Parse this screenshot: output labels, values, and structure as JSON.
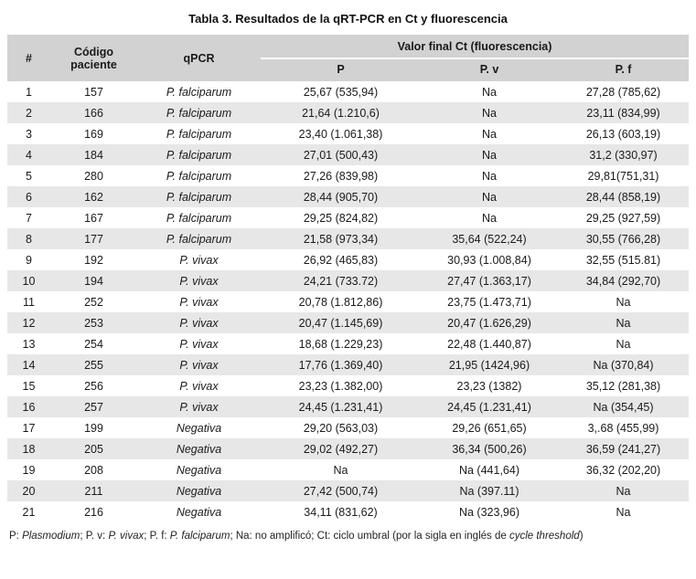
{
  "title": "Tabla 3. Resultados de la qRT-PCR en Ct y fluorescencia",
  "table": {
    "headers": {
      "num": "#",
      "codigo": "Código paciente",
      "qpcr": "qPCR",
      "group": "Valor final Ct (fluorescencia)",
      "sub_p": "P",
      "sub_pv": "P. v",
      "sub_pf": "P. f"
    },
    "rows": [
      [
        "1",
        "157",
        "P. falciparum",
        "25,67 (535,94)",
        "Na",
        "27,28 (785,62)"
      ],
      [
        "2",
        "166",
        "P. falciparum",
        "21,64 (1.210,6)",
        "Na",
        "23,11 (834,99)"
      ],
      [
        "3",
        "169",
        "P. falciparum",
        "23,40 (1.061,38)",
        "Na",
        "26,13 (603,19)"
      ],
      [
        "4",
        "184",
        "P. falciparum",
        "27,01 (500,43)",
        "Na",
        "31,2 (330,97)"
      ],
      [
        "5",
        "280",
        "P. falciparum",
        "27,26 (839,98)",
        "Na",
        "29,81(751,31)"
      ],
      [
        "6",
        "162",
        "P. falciparum",
        "28,44 (905,70)",
        "Na",
        "28,44 (858,19)"
      ],
      [
        "7",
        "167",
        "P. falciparum",
        "29,25 (824,82)",
        "Na",
        "29,25 (927,59)"
      ],
      [
        "8",
        "177",
        "P. falciparum",
        "21,58 (973,34)",
        "35,64 (522,24)",
        "30,55 (766,28)"
      ],
      [
        "9",
        "192",
        "P. vivax",
        "26,92 (465,83)",
        "30,93 (1.008,84)",
        "32,55 (515.81)"
      ],
      [
        "10",
        "194",
        "P. vivax",
        "24,21 (733.72)",
        "27,47 (1.363,17)",
        "34,84 (292,70)"
      ],
      [
        "11",
        "252",
        "P. vivax",
        "20,78 (1.812,86)",
        "23,75 (1.473,71)",
        "Na"
      ],
      [
        "12",
        "253",
        "P. vivax",
        "20,47 (1.145,69)",
        "20,47 (1.626,29)",
        "Na"
      ],
      [
        "13",
        "254",
        "P. vivax",
        "18,68 (1.229,23)",
        "22,48 (1.440,87)",
        "Na"
      ],
      [
        "14",
        "255",
        "P. vivax",
        "17,76 (1.369,40)",
        "21,95 (1424,96)",
        "Na (370,84)"
      ],
      [
        "15",
        "256",
        "P. vivax",
        "23,23 (1.382,00)",
        "23,23 (1382)",
        "35,12 (281,38)"
      ],
      [
        "16",
        "257",
        "P. vivax",
        "24,45 (1.231,41)",
        "24,45 (1.231,41)",
        "Na (354,45)"
      ],
      [
        "17",
        "199",
        "Negativa",
        "29,20 (563,03)",
        "29,26 (651,65)",
        "3,.68 (455,99)"
      ],
      [
        "18",
        "205",
        "Negativa",
        "29,02 (492,27)",
        "36,34 (500,26)",
        "36,59 (241,27)"
      ],
      [
        "19",
        "208",
        "Negativa",
        "Na",
        "Na (441,64)",
        "36,32 (202,20)"
      ],
      [
        "20",
        "211",
        "Negativa",
        "27,42 (500,74)",
        "Na (397.11)",
        "Na"
      ],
      [
        "21",
        "216",
        "Negativa",
        "34,11 (831,62)",
        "Na (323,96)",
        "Na"
      ]
    ]
  },
  "footnote": {
    "segments": [
      {
        "text": "P: ",
        "italic": false
      },
      {
        "text": "Plasmodium",
        "italic": true
      },
      {
        "text": "; P. v: ",
        "italic": false
      },
      {
        "text": "P. vivax",
        "italic": true
      },
      {
        "text": "; P. f: ",
        "italic": false
      },
      {
        "text": "P. falciparum",
        "italic": true
      },
      {
        "text": "; Na: no amplificó; Ct: ciclo umbral (por la sigla en inglés de ",
        "italic": false
      },
      {
        "text": "cycle threshold",
        "italic": true
      },
      {
        "text": ")",
        "italic": false
      }
    ]
  }
}
